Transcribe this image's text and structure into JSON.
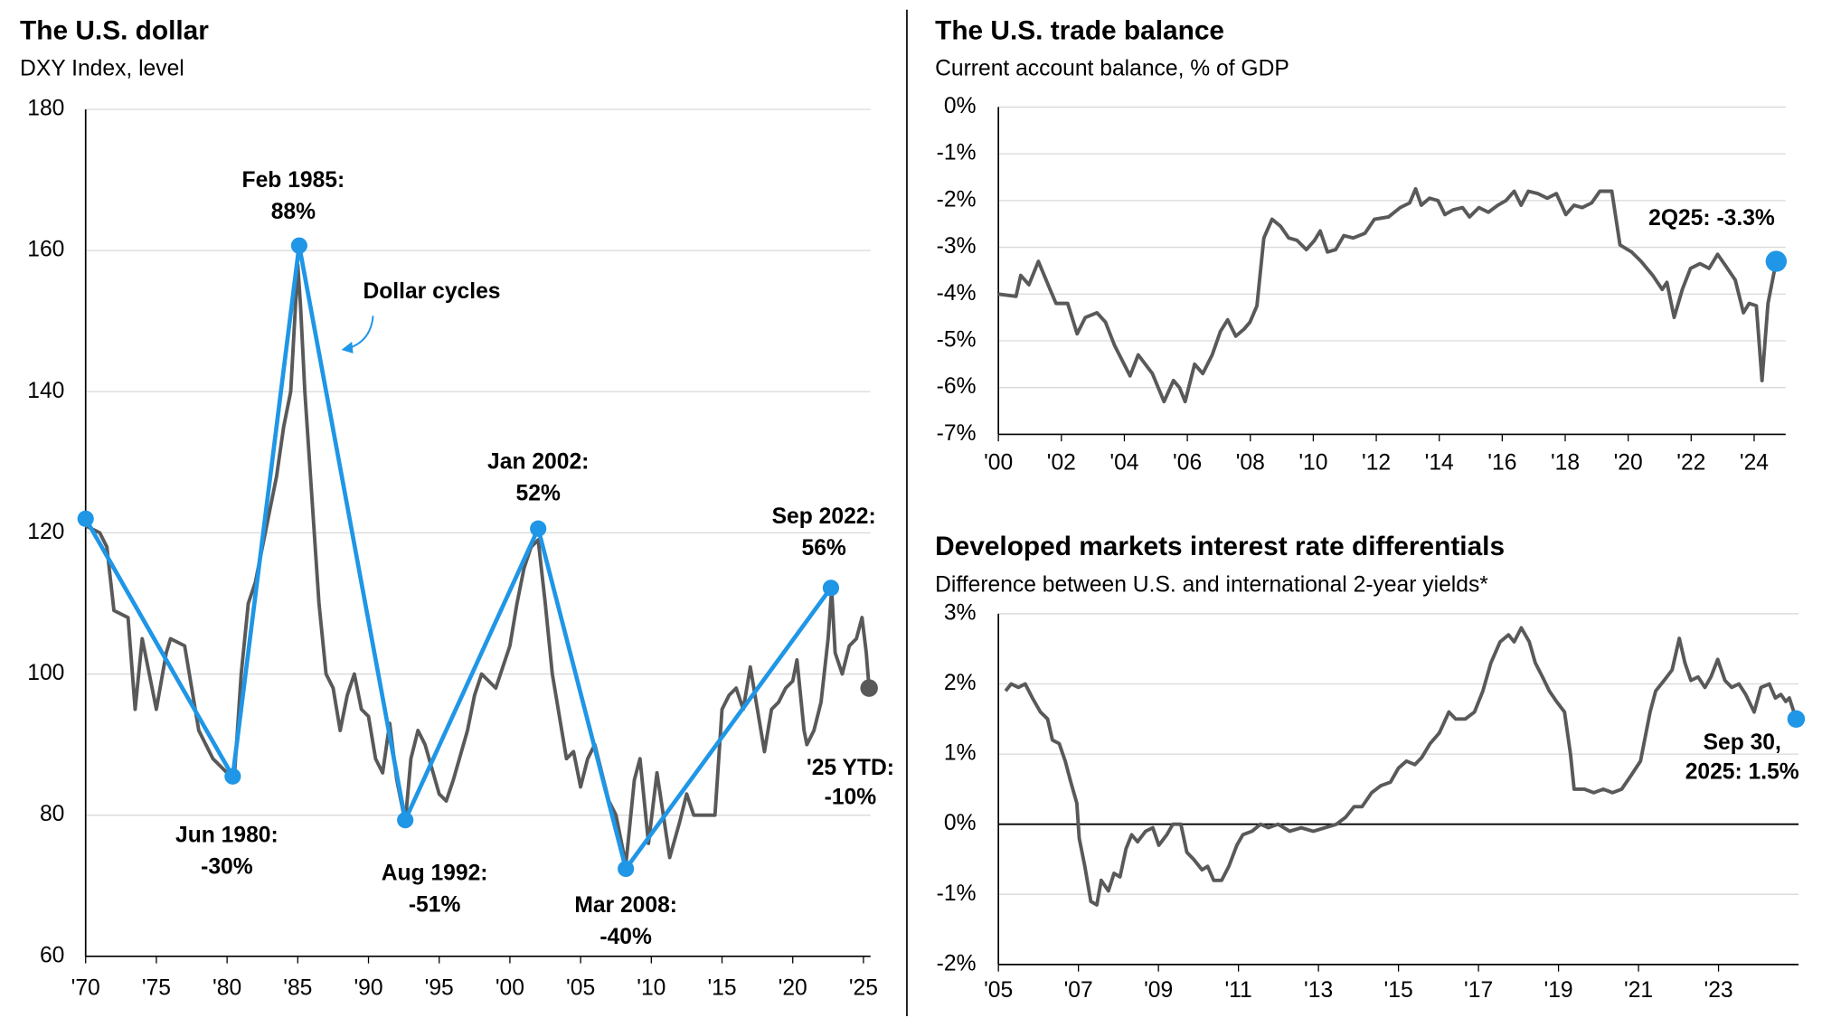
{
  "chart_data": [
    {
      "type": "line",
      "title": "The U.S. dollar",
      "subtitle": "DXY Index, level",
      "xlim": [
        1970,
        2025.5
      ],
      "ylim": [
        60,
        180
      ],
      "xticks": [
        {
          "value": 1970,
          "label": "'70"
        },
        {
          "value": 1975,
          "label": "'75"
        },
        {
          "value": 1980,
          "label": "'80"
        },
        {
          "value": 1985,
          "label": "'85"
        },
        {
          "value": 1990,
          "label": "'90"
        },
        {
          "value": 1995,
          "label": "'95"
        },
        {
          "value": 2000,
          "label": "'00"
        },
        {
          "value": 2005,
          "label": "'05"
        },
        {
          "value": 2010,
          "label": "'10"
        },
        {
          "value": 2015,
          "label": "'15"
        },
        {
          "value": 2020,
          "label": "'20"
        },
        {
          "value": 2025,
          "label": "'25"
        }
      ],
      "yticks": [
        60,
        80,
        100,
        120,
        140,
        160,
        180
      ],
      "grid": true,
      "series": [
        {
          "color": "#595959",
          "end_label": [
            "'25 YTD:",
            "-10%"
          ],
          "end_marker_color": "#595959",
          "x": [
            1970,
            1971,
            1971.5,
            1972,
            1973,
            1973.5,
            1974,
            1975,
            1975.7,
            1976,
            1977,
            1978,
            1979,
            1979.5,
            1980,
            1980.5,
            1981,
            1981.5,
            1982,
            1982.5,
            1983,
            1983.5,
            1984,
            1984.5,
            1985,
            1985.2,
            1985.5,
            1986,
            1986.5,
            1987,
            1987.5,
            1988,
            1988.5,
            1989,
            1989.5,
            1990,
            1990.5,
            1991,
            1991.5,
            1992,
            1992.6,
            1993,
            1993.5,
            1994,
            1995,
            1995.5,
            1996,
            1997,
            1997.5,
            1998,
            1999,
            2000,
            2000.5,
            2001,
            2001.5,
            2002,
            2002.5,
            2003,
            2004,
            2004.5,
            2005,
            2005.5,
            2006,
            2007,
            2007.5,
            2008.2,
            2008.8,
            2009.2,
            2009.8,
            2010.4,
            2011.3,
            2012,
            2012.5,
            2013,
            2014,
            2014.5,
            2015,
            2015.5,
            2016,
            2016.5,
            2017,
            2017.5,
            2018,
            2018.5,
            2019,
            2019.5,
            2020,
            2020.3,
            2020.8,
            2021,
            2021.5,
            2022,
            2022.5,
            2022.75,
            2023,
            2023.5,
            2024,
            2024.5,
            2024.9,
            2025.2,
            2025.4
          ],
          "values": [
            121,
            120,
            118,
            109,
            108,
            95,
            105,
            95,
            103,
            105,
            104,
            92,
            88,
            87,
            86,
            85,
            100,
            110,
            113,
            118,
            123,
            128,
            135,
            140,
            158,
            152,
            140,
            125,
            110,
            100,
            98,
            92,
            97,
            100,
            95,
            94,
            88,
            86,
            93,
            85,
            79,
            88,
            92,
            90,
            83,
            82,
            85,
            92,
            97,
            100,
            98,
            104,
            110,
            115,
            118,
            119,
            110,
            100,
            88,
            89,
            84,
            88,
            90,
            82,
            80,
            73,
            85,
            88,
            76,
            86,
            74,
            79,
            83,
            80,
            80,
            80,
            95,
            97,
            98,
            95,
            101,
            95,
            89,
            95,
            96,
            98,
            99,
            102,
            92,
            90,
            92,
            96,
            105,
            112,
            103,
            100,
            104,
            105,
            108,
            103,
            98
          ]
        },
        {
          "name": "Dollar cycles",
          "color": "#1f96e6",
          "x": [
            1970,
            1980.4,
            1985.1,
            1992.6,
            2002,
            2008.2,
            2022.7
          ],
          "values": [
            122,
            85.5,
            160.7,
            79.3,
            120.6,
            72.4,
            112.2
          ],
          "point_labels": [
            null,
            [
              "Jun 1980:",
              "-30%"
            ],
            [
              "Feb 1985:",
              "88%"
            ],
            [
              "Aug 1992:",
              "-51%"
            ],
            [
              "Jan 2002:",
              "52%"
            ],
            [
              "Mar 2008:",
              "-40%"
            ],
            [
              "Sep 2022:",
              "56%"
            ]
          ]
        }
      ]
    },
    {
      "type": "line",
      "title": "The U.S. trade balance",
      "subtitle": "Current account balance, % of GDP",
      "xlim": [
        2000,
        2025
      ],
      "ylim": [
        -7,
        0
      ],
      "xticks": [
        {
          "value": 2000,
          "label": "'00"
        },
        {
          "value": 2002,
          "label": "'02"
        },
        {
          "value": 2004,
          "label": "'04"
        },
        {
          "value": 2006,
          "label": "'06"
        },
        {
          "value": 2008,
          "label": "'08"
        },
        {
          "value": 2010,
          "label": "'10"
        },
        {
          "value": 2012,
          "label": "'12"
        },
        {
          "value": 2014,
          "label": "'14"
        },
        {
          "value": 2016,
          "label": "'16"
        },
        {
          "value": 2018,
          "label": "'18"
        },
        {
          "value": 2020,
          "label": "'20"
        },
        {
          "value": 2022,
          "label": "'22"
        },
        {
          "value": 2024,
          "label": "'24"
        }
      ],
      "yticks": [
        {
          "value": 0,
          "label": "0%"
        },
        {
          "value": -1,
          "label": "-1%"
        },
        {
          "value": -2,
          "label": "-2%"
        },
        {
          "value": -3,
          "label": "-3%"
        },
        {
          "value": -4,
          "label": "-4%"
        },
        {
          "value": -5,
          "label": "-5%"
        },
        {
          "value": -6,
          "label": "-6%"
        },
        {
          "value": -7,
          "label": "-7%"
        }
      ],
      "grid": true,
      "series": [
        {
          "color": "#595959",
          "end_label": [
            "2Q25: -3.3%"
          ],
          "end_marker_color": "#1f96e6",
          "x": [
            2000,
            2000.56,
            2000.71,
            2000.97,
            2001.27,
            2001.64,
            2001.83,
            2002.2,
            2002.5,
            2002.76,
            2003.13,
            2003.4,
            2003.69,
            2004.18,
            2004.44,
            2004.89,
            2005.26,
            2005.56,
            2005.75,
            2005.93,
            2006.23,
            2006.49,
            2006.79,
            2007.05,
            2007.28,
            2007.54,
            2007.8,
            2007.99,
            2008.21,
            2008.43,
            2008.69,
            2008.96,
            2009.22,
            2009.48,
            2009.78,
            2010.04,
            2010.22,
            2010.45,
            2010.71,
            2010.97,
            2011.27,
            2011.64,
            2011.94,
            2012.39,
            2012.76,
            2013.06,
            2013.25,
            2013.43,
            2013.69,
            2013.96,
            2014.18,
            2014.44,
            2014.74,
            2014.96,
            2015.26,
            2015.56,
            2015.86,
            2016.12,
            2016.38,
            2016.6,
            2016.83,
            2017.13,
            2017.43,
            2017.72,
            2018.02,
            2018.28,
            2018.54,
            2018.84,
            2019.1,
            2019.48,
            2019.74,
            2020.11,
            2020.41,
            2020.78,
            2021.08,
            2021.23,
            2021.46,
            2021.72,
            2021.98,
            2022.28,
            2022.57,
            2022.84,
            2023.1,
            2023.4,
            2023.66,
            2023.84,
            2024.07,
            2024.25,
            2024.44,
            2024.7
          ],
          "values": [
            -4.0,
            -4.05,
            -3.6,
            -3.8,
            -3.3,
            -3.9,
            -4.2,
            -4.2,
            -4.85,
            -4.5,
            -4.4,
            -4.6,
            -5.1,
            -5.75,
            -5.3,
            -5.7,
            -6.3,
            -5.85,
            -6.0,
            -6.3,
            -5.5,
            -5.7,
            -5.3,
            -4.8,
            -4.55,
            -4.9,
            -4.75,
            -4.6,
            -4.25,
            -2.8,
            -2.4,
            -2.55,
            -2.8,
            -2.85,
            -3.05,
            -2.85,
            -2.65,
            -3.1,
            -3.05,
            -2.75,
            -2.8,
            -2.7,
            -2.4,
            -2.35,
            -2.15,
            -2.05,
            -1.75,
            -2.1,
            -1.95,
            -2.0,
            -2.3,
            -2.2,
            -2.15,
            -2.35,
            -2.15,
            -2.25,
            -2.1,
            -2.0,
            -1.8,
            -2.1,
            -1.8,
            -1.85,
            -1.95,
            -1.85,
            -2.3,
            -2.1,
            -2.15,
            -2.05,
            -1.8,
            -1.8,
            -2.95,
            -3.1,
            -3.3,
            -3.6,
            -3.9,
            -3.75,
            -4.5,
            -3.9,
            -3.45,
            -3.35,
            -3.45,
            -3.15,
            -3.4,
            -3.7,
            -4.4,
            -4.2,
            -4.25,
            -5.85,
            -4.2,
            -3.3
          ]
        }
      ]
    },
    {
      "type": "line",
      "title": "Developed markets interest rate differentials",
      "subtitle": "Difference between U.S. and international 2-year yields*",
      "xlim": [
        2005,
        2025
      ],
      "ylim": [
        -2,
        3
      ],
      "xticks": [
        {
          "value": 2005,
          "label": "'05"
        },
        {
          "value": 2007,
          "label": "'07"
        },
        {
          "value": 2009,
          "label": "'09"
        },
        {
          "value": 2011,
          "label": "'11"
        },
        {
          "value": 2013,
          "label": "'13"
        },
        {
          "value": 2015,
          "label": "'15"
        },
        {
          "value": 2017,
          "label": "'17"
        },
        {
          "value": 2019,
          "label": "'19"
        },
        {
          "value": 2021,
          "label": "'21"
        },
        {
          "value": 2023,
          "label": "'23"
        }
      ],
      "yticks": [
        {
          "value": 3,
          "label": "3%"
        },
        {
          "value": 2,
          "label": "2%"
        },
        {
          "value": 1,
          "label": "1%"
        },
        {
          "value": 0,
          "label": "0%"
        },
        {
          "value": -1,
          "label": "-1%"
        },
        {
          "value": -2,
          "label": "-2%"
        }
      ],
      "grid": true,
      "zero_line": true,
      "series": [
        {
          "color": "#595959",
          "end_label": [
            "Sep 30,",
            "2025: 1.5%"
          ],
          "end_marker_color": "#1f96e6",
          "x": [
            2005.18,
            2005.32,
            2005.5,
            2005.67,
            2005.85,
            2006.05,
            2006.23,
            2006.35,
            2006.52,
            2006.67,
            2006.81,
            2006.96,
            2007.02,
            2007.16,
            2007.31,
            2007.46,
            2007.57,
            2007.75,
            2007.89,
            2008.04,
            2008.19,
            2008.33,
            2008.48,
            2008.68,
            2008.86,
            2009.01,
            2009.21,
            2009.36,
            2009.56,
            2009.71,
            2009.88,
            2010.09,
            2010.23,
            2010.38,
            2010.58,
            2010.76,
            2010.96,
            2011.11,
            2011.34,
            2011.55,
            2011.75,
            2011.99,
            2012.28,
            2012.57,
            2012.87,
            2013.16,
            2013.45,
            2013.68,
            2013.89,
            2014.09,
            2014.33,
            2014.56,
            2014.8,
            2015.0,
            2015.2,
            2015.41,
            2015.58,
            2015.79,
            2016.02,
            2016.26,
            2016.43,
            2016.67,
            2016.9,
            2017.11,
            2017.31,
            2017.54,
            2017.75,
            2017.89,
            2018.07,
            2018.27,
            2018.42,
            2018.6,
            2018.77,
            2018.95,
            2019.15,
            2019.3,
            2019.39,
            2019.65,
            2019.88,
            2020.12,
            2020.35,
            2020.58,
            2020.82,
            2021.05,
            2021.29,
            2021.43,
            2021.64,
            2021.84,
            2022.02,
            2022.16,
            2022.31,
            2022.49,
            2022.66,
            2022.81,
            2022.98,
            2023.16,
            2023.33,
            2023.51,
            2023.68,
            2023.89,
            2024.06,
            2024.27,
            2024.42,
            2024.56,
            2024.68,
            2024.77,
            2024.94
          ],
          "values": [
            1.9,
            2.0,
            1.95,
            2.0,
            1.8,
            1.6,
            1.5,
            1.2,
            1.15,
            0.9,
            0.6,
            0.3,
            -0.2,
            -0.6,
            -1.1,
            -1.15,
            -0.8,
            -0.95,
            -0.7,
            -0.75,
            -0.35,
            -0.15,
            -0.25,
            -0.1,
            -0.05,
            -0.3,
            -0.15,
            0.0,
            0.0,
            -0.4,
            -0.5,
            -0.65,
            -0.6,
            -0.8,
            -0.8,
            -0.6,
            -0.3,
            -0.15,
            -0.1,
            0.0,
            -0.05,
            0.0,
            -0.1,
            -0.05,
            -0.1,
            -0.05,
            0.0,
            0.1,
            0.25,
            0.25,
            0.45,
            0.55,
            0.6,
            0.8,
            0.9,
            0.85,
            0.95,
            1.15,
            1.3,
            1.6,
            1.5,
            1.5,
            1.6,
            1.9,
            2.3,
            2.6,
            2.7,
            2.6,
            2.8,
            2.6,
            2.3,
            2.1,
            1.9,
            1.75,
            1.6,
            1.0,
            0.5,
            0.5,
            0.45,
            0.5,
            0.45,
            0.5,
            0.7,
            0.9,
            1.6,
            1.9,
            2.05,
            2.2,
            2.65,
            2.3,
            2.05,
            2.1,
            1.95,
            2.1,
            2.35,
            2.05,
            1.95,
            2.0,
            1.85,
            1.6,
            1.95,
            2.0,
            1.8,
            1.85,
            1.75,
            1.8,
            1.5
          ]
        }
      ]
    }
  ]
}
